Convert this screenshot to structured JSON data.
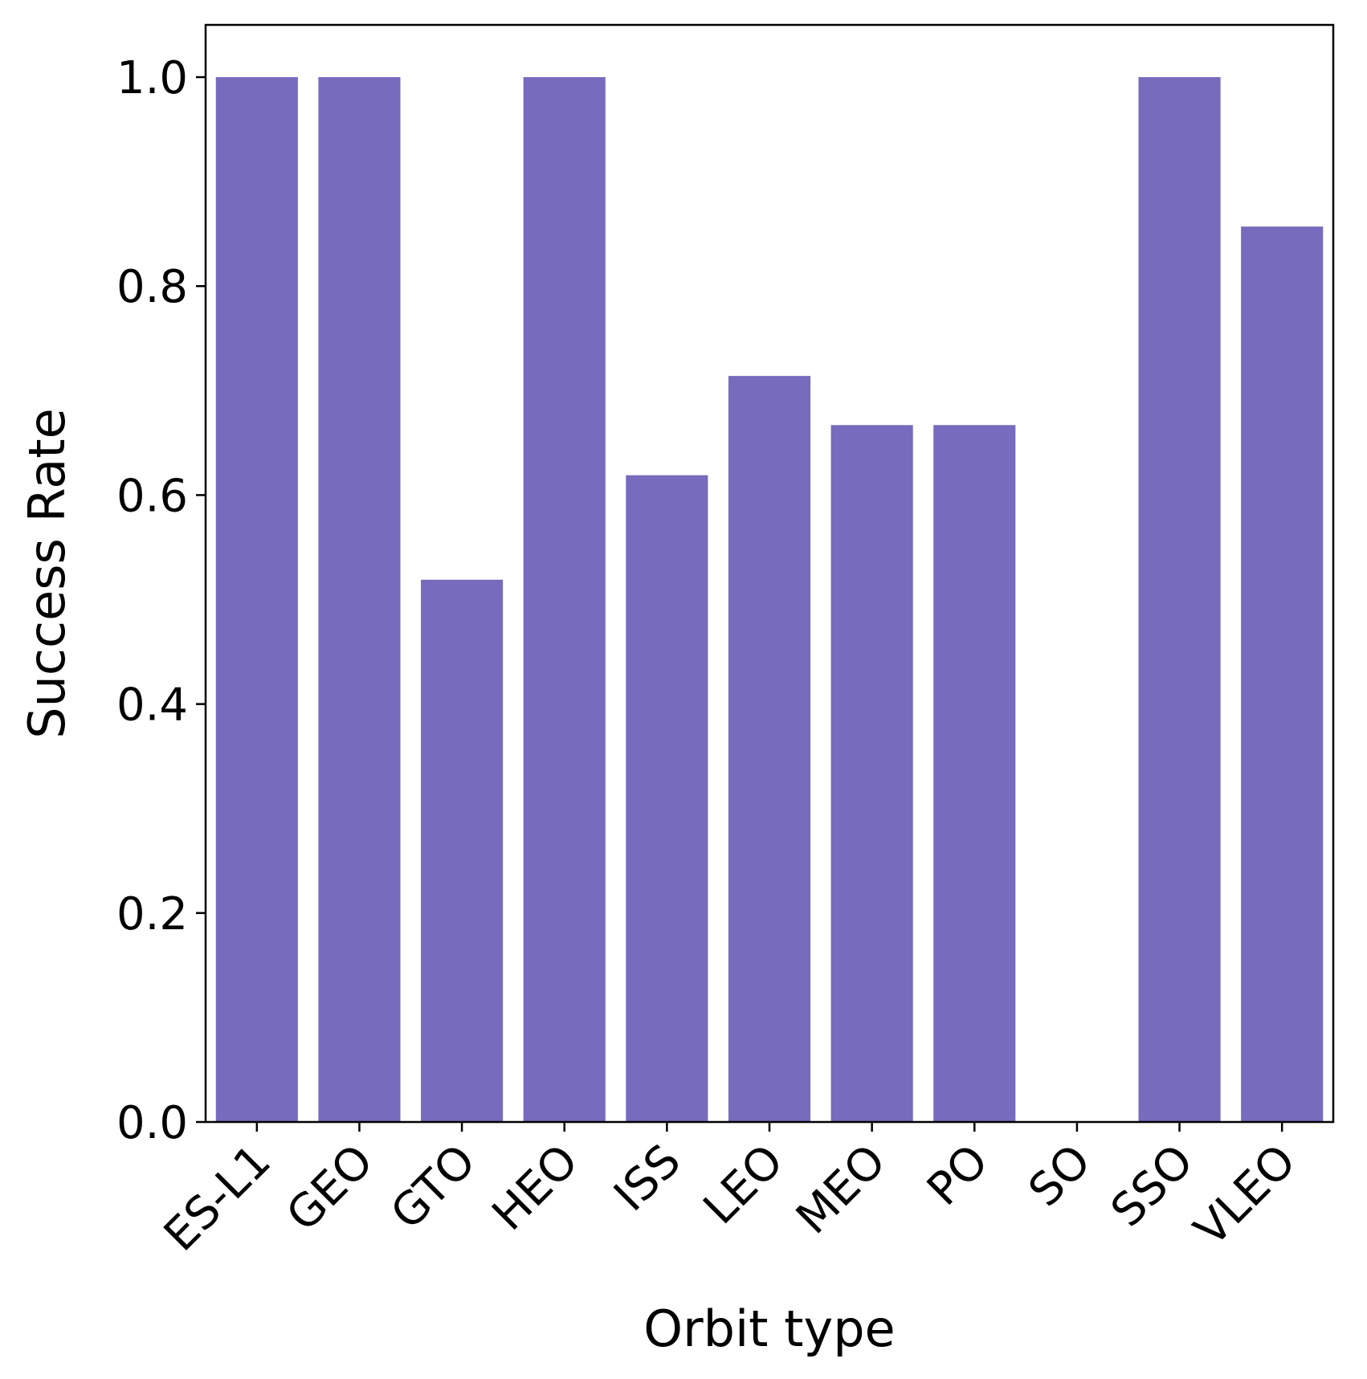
{
  "chart_data": {
    "type": "bar",
    "xlabel": "Orbit type",
    "ylabel": "Success Rate",
    "categories": [
      "ES-L1",
      "GEO",
      "GTO",
      "HEO",
      "ISS",
      "LEO",
      "MEO",
      "PO",
      "SO",
      "SSO",
      "VLEO"
    ],
    "values": [
      1.0,
      1.0,
      0.519,
      1.0,
      0.619,
      0.714,
      0.667,
      0.667,
      0.0,
      1.0,
      0.857
    ],
    "ylim": [
      0,
      1.05
    ],
    "yticks": [
      0.0,
      0.2,
      0.4,
      0.6,
      0.8,
      1.0
    ],
    "ytick_labels": [
      "0.0",
      "0.2",
      "0.4",
      "0.6",
      "0.8",
      "1.0"
    ],
    "grid": false,
    "legend": "none",
    "colors": {
      "bar": "#766bbd",
      "axes": "#000000"
    }
  }
}
